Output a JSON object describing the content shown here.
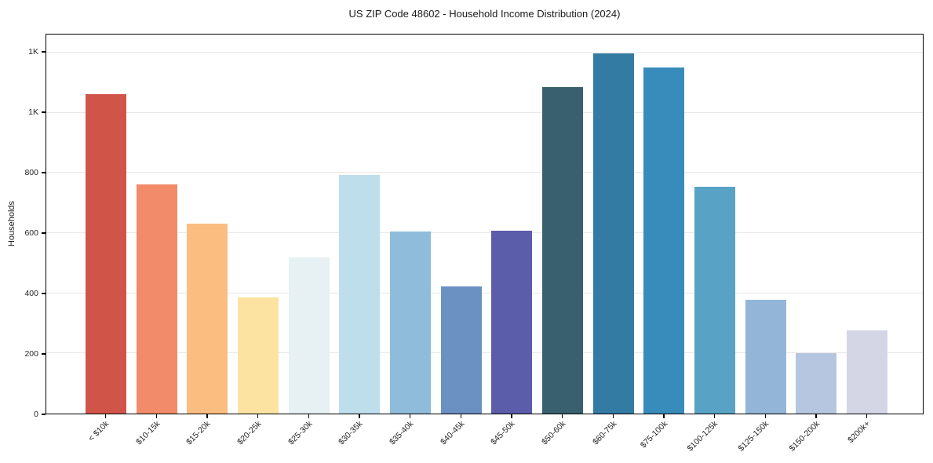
{
  "title": "US ZIP Code 48602 - Household Income Distribution (2024)",
  "chart_data": {
    "type": "bar",
    "title": "US ZIP Code 48602 - Household Income Distribution (2024)",
    "xlabel": "",
    "ylabel": "Households",
    "categories": [
      "< $10k",
      "$10-15k",
      "$15-20k",
      "$20-25k",
      "$25-30k",
      "$30-35k",
      "$35-40k",
      "$40-45k",
      "$45-50k",
      "$50-60k",
      "$60-75k",
      "$75-100k",
      "$100-125k",
      "$125-150k",
      "$150-200k",
      "$200k+"
    ],
    "values": [
      1062,
      761,
      631,
      387,
      518,
      792,
      604,
      423,
      608,
      1084,
      1197,
      1150,
      753,
      377,
      202,
      277
    ],
    "bar_colors": [
      "#d15449",
      "#f28b69",
      "#fbbd80",
      "#fce3a2",
      "#e7f1f4",
      "#bfdeec",
      "#8fbcda",
      "#6b91c3",
      "#5b5caa",
      "#38606f",
      "#337ba3",
      "#388cbb",
      "#58a3c5",
      "#93b6d8",
      "#b7c6e0",
      "#d4d6e5"
    ],
    "ylim": [
      0,
      1260
    ],
    "yticks": [
      {
        "value": 0,
        "label": "0"
      },
      {
        "value": 200,
        "label": "200"
      },
      {
        "value": 400,
        "label": "400"
      },
      {
        "value": 600,
        "label": "600"
      },
      {
        "value": 800,
        "label": "800"
      },
      {
        "value": 1000,
        "label": "1K"
      },
      {
        "value": 1200,
        "label": "1K"
      }
    ],
    "grid": "horizontal-only",
    "legend": "none",
    "x_tick_rotation": 45
  },
  "colors": {
    "background": "#ffffff",
    "grid": "#e8e8e8",
    "spine": "#000000",
    "text": "#262626"
  }
}
